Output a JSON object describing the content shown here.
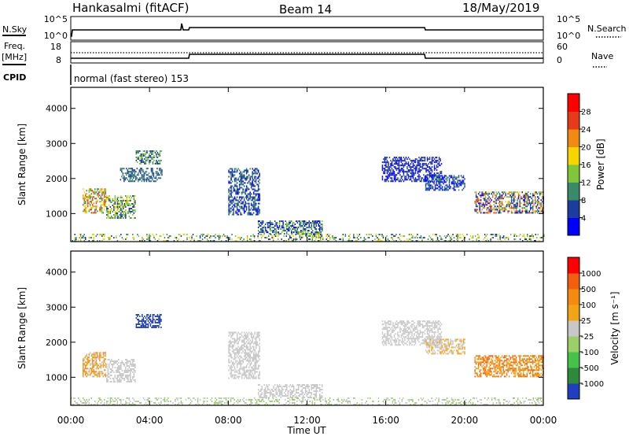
{
  "header": {
    "station": "Hankasalmi (fitACF)",
    "beam": "Beam 14",
    "date": "18/May/2019"
  },
  "status_panels": {
    "nsky_label": "N.Sky",
    "nsky_ticks": [
      "10^5",
      "10^0"
    ],
    "nsearch_label": "N.Search",
    "nsearch_ticks": [
      "10^5",
      "10^0"
    ],
    "freq_label_line1": "Freq.",
    "freq_label_line2": "[MHz]",
    "freq_ticks": [
      "18",
      "8"
    ],
    "nave_label": "Nave",
    "nave_ticks": [
      "60",
      "0"
    ],
    "cpid_label": "CPID",
    "cpid_text": "normal (fast stereo) 153"
  },
  "chart_data": [
    {
      "type": "heatmap",
      "name": "power",
      "ylabel": "Slant Range [km]",
      "yticks": [
        "1000",
        "2000",
        "3000",
        "4000"
      ],
      "ylim": [
        200,
        4600
      ],
      "xlim": [
        0,
        24
      ],
      "colorbar_label": "Power [dB]",
      "colorbar_ticks": [
        "4",
        "8",
        "12",
        "16",
        "20",
        "24",
        "28"
      ],
      "colors": [
        "#0000ff",
        "#1d3d9e",
        "#3a8a6a",
        "#7fc63a",
        "#f7d500",
        "#f08a10",
        "#e63a1a",
        "#ff0000"
      ],
      "echo_regions": [
        {
          "t": [
            0.6,
            1.8
          ],
          "r": [
            1000,
            1700
          ],
          "level": [
            2,
            6
          ]
        },
        {
          "t": [
            1.8,
            3.3
          ],
          "r": [
            850,
            1500
          ],
          "level": [
            1,
            4
          ]
        },
        {
          "t": [
            3.3,
            4.6
          ],
          "r": [
            2400,
            2800
          ],
          "level": [
            1,
            3
          ]
        },
        {
          "t": [
            2.5,
            4.6
          ],
          "r": [
            1900,
            2300
          ],
          "level": [
            1,
            2
          ]
        },
        {
          "t": [
            8.0,
            9.6
          ],
          "r": [
            950,
            2300
          ],
          "level": [
            0,
            2
          ]
        },
        {
          "t": [
            9.5,
            12.8
          ],
          "r": [
            400,
            800
          ],
          "level": [
            0,
            3
          ]
        },
        {
          "t": [
            11.6,
            12.7
          ],
          "r": [
            300,
            460
          ],
          "level": [
            2,
            4
          ]
        },
        {
          "t": [
            15.8,
            18.8
          ],
          "r": [
            1900,
            2600
          ],
          "level": [
            0,
            1
          ]
        },
        {
          "t": [
            18.0,
            20.0
          ],
          "r": [
            1650,
            2100
          ],
          "level": [
            0,
            2
          ]
        },
        {
          "t": [
            20.5,
            24.0
          ],
          "r": [
            1000,
            1600
          ],
          "level": [
            0,
            6
          ]
        },
        {
          "t": [
            0.0,
            24.0
          ],
          "r": [
            200,
            400
          ],
          "level": [
            1,
            4
          ]
        }
      ]
    },
    {
      "type": "heatmap",
      "name": "velocity",
      "ylabel": "Slant Range [km]",
      "yticks": [
        "1000",
        "2000",
        "3000",
        "4000"
      ],
      "ylim": [
        200,
        4600
      ],
      "xlim": [
        0,
        24
      ],
      "colorbar_label": "Velocity [m s⁻¹]",
      "colorbar_ticks": [
        "1000",
        "500",
        "100",
        "25",
        "-25",
        "-100",
        "-500",
        "-1000"
      ],
      "colors": [
        "#1f3fbf",
        "#2e8a3a",
        "#44c24a",
        "#9ad06a",
        "#c8c8c8",
        "#f2a514",
        "#f58a10",
        "#f2600f",
        "#ff0000"
      ],
      "echo_regions": [
        {
          "t": [
            0.6,
            1.8
          ],
          "r": [
            1000,
            1700
          ],
          "level": [
            4,
            6
          ]
        },
        {
          "t": [
            1.8,
            3.3
          ],
          "r": [
            850,
            1500
          ],
          "level": [
            4,
            4
          ]
        },
        {
          "t": [
            3.3,
            4.6
          ],
          "r": [
            2400,
            2800
          ],
          "level": [
            0,
            0
          ]
        },
        {
          "t": [
            8.0,
            9.6
          ],
          "r": [
            950,
            2300
          ],
          "level": [
            4,
            4
          ]
        },
        {
          "t": [
            9.5,
            12.8
          ],
          "r": [
            400,
            800
          ],
          "level": [
            4,
            4
          ]
        },
        {
          "t": [
            15.8,
            18.8
          ],
          "r": [
            1900,
            2600
          ],
          "level": [
            4,
            4
          ]
        },
        {
          "t": [
            18.0,
            20.0
          ],
          "r": [
            1650,
            2100
          ],
          "level": [
            4,
            5
          ]
        },
        {
          "t": [
            20.5,
            24.0
          ],
          "r": [
            1000,
            1600
          ],
          "level": [
            5,
            7
          ]
        },
        {
          "t": [
            0.0,
            24.0
          ],
          "r": [
            200,
            400
          ],
          "level": [
            3,
            4
          ]
        }
      ]
    }
  ],
  "xaxis": {
    "label": "Time UT",
    "ticks": [
      "00:00",
      "04:00",
      "08:00",
      "12:00",
      "16:00",
      "20:00",
      "00:00"
    ]
  }
}
